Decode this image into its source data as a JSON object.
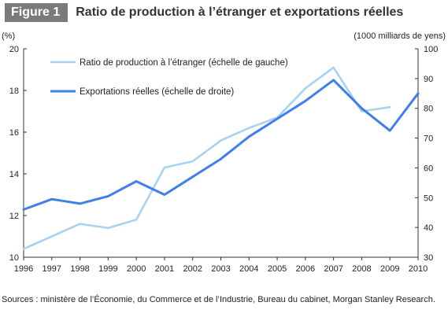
{
  "figure_label": "Figure 1",
  "chart_data": {
    "type": "line",
    "title": "Ratio de production à l’étranger et exportations réelles",
    "x": [
      1996,
      1997,
      1998,
      1999,
      2000,
      2001,
      2002,
      2003,
      2004,
      2005,
      2006,
      2007,
      2008,
      2009,
      2010
    ],
    "left_axis": {
      "unit": "(%)",
      "ylim": [
        10,
        20
      ],
      "ticks": [
        10,
        12,
        14,
        16,
        18,
        20
      ]
    },
    "right_axis": {
      "unit": "(1000 milliards de yens)",
      "ylim": [
        30,
        100
      ],
      "ticks": [
        30,
        40,
        50,
        60,
        70,
        80,
        90,
        100
      ]
    },
    "series": [
      {
        "name": "Ratio de production à l’étranger (échelle de gauche)",
        "axis": "left",
        "color": "#a9d1f2",
        "values": [
          10.4,
          11.0,
          11.6,
          11.4,
          11.8,
          14.3,
          14.6,
          15.6,
          16.2,
          16.7,
          18.1,
          19.1,
          17.0,
          17.2,
          null
        ]
      },
      {
        "name": "Exportations réelles (échelle de droite)",
        "axis": "right",
        "color": "#3f7fea",
        "values": [
          46.0,
          49.5,
          48.0,
          50.5,
          55.5,
          51.0,
          57.0,
          63.0,
          70.5,
          76.5,
          82.5,
          89.5,
          80.0,
          72.5,
          85.0
        ]
      }
    ],
    "grid": false,
    "legend_position": "top-left"
  },
  "source": "Sources : ministère de l’Économie, du Commerce et de l’Industrie, Bureau du cabinet, Morgan Stanley Research."
}
